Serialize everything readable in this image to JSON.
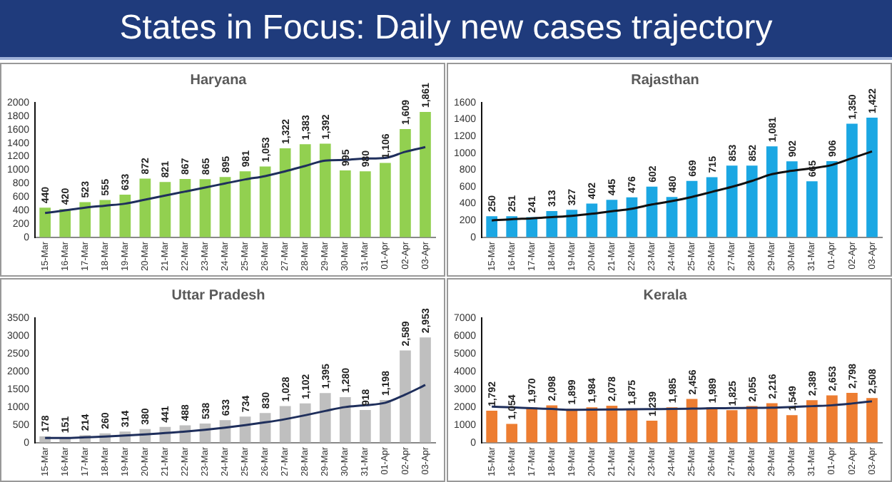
{
  "chart_data": [
    {
      "type": "other",
      "title": "States in Focus: Daily new cases trajectory"
    },
    {
      "type": "bar",
      "title": "Haryana",
      "categories": [
        "15-Mar",
        "16-Mar",
        "17-Mar",
        "18-Mar",
        "19-Mar",
        "20-Mar",
        "21-Mar",
        "22-Mar",
        "23-Mar",
        "24-Mar",
        "25-Mar",
        "26-Mar",
        "27-Mar",
        "28-Mar",
        "29-Mar",
        "30-Mar",
        "31-Mar",
        "01-Apr",
        "02-Apr",
        "03-Apr"
      ],
      "ylim": [
        0,
        2000
      ],
      "yticks": [
        0,
        200,
        400,
        600,
        800,
        1000,
        1200,
        1400,
        1600,
        1800,
        2000
      ],
      "grid": false,
      "legend": false,
      "series": [
        {
          "type": "bar",
          "color": "#92d050",
          "values": [
            440,
            420,
            523,
            555,
            633,
            872,
            821,
            867,
            865,
            895,
            981,
            1053,
            1322,
            1383,
            1392,
            995,
            980,
            1106,
            1609,
            1861
          ],
          "value_labels": [
            "440",
            "420",
            "523",
            "555",
            "633",
            "872",
            "821",
            "867",
            "865",
            "895",
            "981",
            "1,053",
            "1,322",
            "1,383",
            "1,392",
            "995",
            "980",
            "1,106",
            "1,609",
            "1,861"
          ]
        },
        {
          "type": "line",
          "color": "#1f2f5c",
          "marker": "none",
          "values": [
            360,
            400,
            440,
            470,
            500,
            560,
            620,
            680,
            740,
            800,
            860,
            910,
            980,
            1060,
            1140,
            1150,
            1170,
            1180,
            1270,
            1340
          ]
        }
      ]
    },
    {
      "type": "bar",
      "title": "Rajasthan",
      "categories": [
        "15-Mar",
        "16-Mar",
        "17-Mar",
        "18-Mar",
        "19-Mar",
        "20-Mar",
        "21-Mar",
        "22-Mar",
        "23-Mar",
        "24-Mar",
        "25-Mar",
        "26-Mar",
        "27-Mar",
        "28-Mar",
        "29-Mar",
        "30-Mar",
        "31-Mar",
        "01-Apr",
        "02-Apr",
        "03-Apr"
      ],
      "ylim": [
        0,
        1600
      ],
      "yticks": [
        0,
        200,
        400,
        600,
        800,
        1000,
        1200,
        1400,
        1600
      ],
      "grid": false,
      "legend": false,
      "series": [
        {
          "type": "bar",
          "color": "#1ba7e3",
          "values": [
            250,
            251,
            241,
            313,
            327,
            402,
            445,
            476,
            602,
            480,
            669,
            715,
            853,
            852,
            1081,
            902,
            665,
            906,
            1350,
            1422
          ],
          "value_labels": [
            "250",
            "251",
            "241",
            "313",
            "327",
            "402",
            "445",
            "476",
            "602",
            "480",
            "669",
            "715",
            "853",
            "852",
            "1,081",
            "902",
            "665",
            "906",
            "1,350",
            "1,422"
          ]
        },
        {
          "type": "line",
          "color": "#111111",
          "marker": "none",
          "values": [
            200,
            215,
            225,
            240,
            255,
            280,
            310,
            340,
            390,
            430,
            480,
            540,
            600,
            670,
            750,
            790,
            820,
            860,
            940,
            1020
          ]
        }
      ]
    },
    {
      "type": "bar",
      "title": "Uttar Pradesh",
      "categories": [
        "15-Mar",
        "16-Mar",
        "17-Mar",
        "18-Mar",
        "19-Mar",
        "20-Mar",
        "21-Mar",
        "22-Mar",
        "23-Mar",
        "24-Mar",
        "25-Mar",
        "26-Mar",
        "27-Mar",
        "28-Mar",
        "29-Mar",
        "30-Mar",
        "31-Mar",
        "01-Apr",
        "02-Apr",
        "03-Apr"
      ],
      "ylim": [
        0,
        3500
      ],
      "yticks": [
        0,
        500,
        1000,
        1500,
        2000,
        2500,
        3000,
        3500
      ],
      "grid": false,
      "legend": false,
      "series": [
        {
          "type": "bar",
          "color": "#bfbfbf",
          "values": [
            178,
            151,
            214,
            260,
            314,
            380,
            441,
            488,
            538,
            633,
            734,
            830,
            1028,
            1102,
            1395,
            1280,
            918,
            1198,
            2589,
            2953
          ],
          "value_labels": [
            "178",
            "151",
            "214",
            "260",
            "314",
            "380",
            "441",
            "488",
            "538",
            "633",
            "734",
            "830",
            "1,028",
            "1,102",
            "1,395",
            "1,280",
            "918",
            "1,198",
            "2,589",
            "2,953"
          ]
        },
        {
          "type": "line",
          "color": "#1f2f5c",
          "marker": "none",
          "values": [
            130,
            130,
            150,
            170,
            200,
            230,
            270,
            310,
            360,
            420,
            490,
            570,
            660,
            770,
            890,
            1000,
            1050,
            1120,
            1350,
            1620
          ]
        }
      ]
    },
    {
      "type": "bar",
      "title": "Kerala",
      "categories": [
        "15-Mar",
        "16-Mar",
        "17-Mar",
        "18-Mar",
        "19-Mar",
        "20-Mar",
        "21-Mar",
        "22-Mar",
        "23-Mar",
        "24-Mar",
        "25-Mar",
        "26-Mar",
        "27-Mar",
        "28-Mar",
        "29-Mar",
        "30-Mar",
        "31-Mar",
        "01-Apr",
        "02-Apr",
        "03-Apr"
      ],
      "ylim": [
        0,
        7000
      ],
      "yticks": [
        0,
        1000,
        2000,
        3000,
        4000,
        5000,
        6000,
        7000
      ],
      "grid": false,
      "legend": false,
      "series": [
        {
          "type": "bar",
          "color": "#ed7d31",
          "values": [
            1792,
            1054,
            1970,
            2098,
            1899,
            1984,
            2078,
            1875,
            1239,
            1985,
            2456,
            1989,
            1825,
            2055,
            2216,
            1549,
            2389,
            2653,
            2798,
            2508
          ],
          "value_labels": [
            "1,792",
            "1,054",
            "1,970",
            "2,098",
            "1,899",
            "1,984",
            "2,078",
            "1,875",
            "1,239",
            "1,985",
            "2,456",
            "1,989",
            "1,825",
            "2,055",
            "2,216",
            "1,549",
            "2,389",
            "2,653",
            "2,798",
            "2,508"
          ]
        },
        {
          "type": "line",
          "color": "#1f2f5c",
          "marker": "none",
          "values": [
            2020,
            1980,
            1930,
            1890,
            1840,
            1850,
            1860,
            1870,
            1880,
            1890,
            1910,
            1930,
            1940,
            1950,
            1960,
            2000,
            2050,
            2100,
            2200,
            2320
          ]
        }
      ]
    }
  ]
}
